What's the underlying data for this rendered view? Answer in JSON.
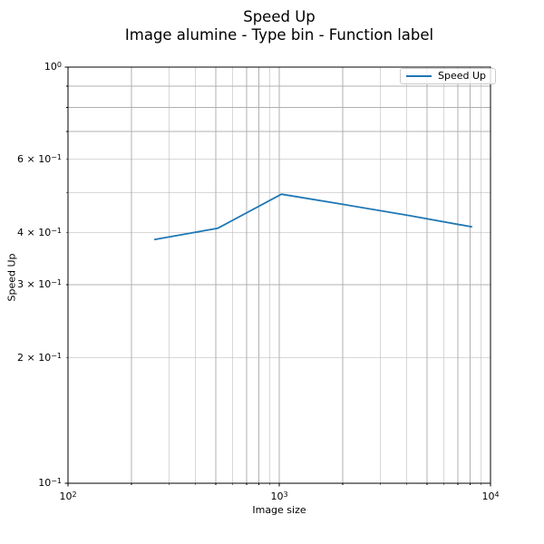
{
  "title": {
    "line1": "Speed Up",
    "line2": "Image alumine - Type bin - Function label"
  },
  "colors": {
    "line": "#1f77b4",
    "grid": "#b0b0b0",
    "spine": "#000000",
    "tick": "#000000",
    "text": "#000000",
    "legend_border": "#cccccc",
    "background": "#ffffff"
  },
  "chart_data": {
    "type": "line",
    "title": "Speed Up\nImage alumine - Type bin - Function label",
    "xlabel": "Image size",
    "ylabel": "Speed Up",
    "xscale": "log",
    "yscale": "log",
    "xlim": [
      100,
      10000
    ],
    "ylim": [
      0.1,
      1.0
    ],
    "grid": "both-major-and-minor",
    "legend_position": "upper right",
    "series": [
      {
        "name": "Speed Up",
        "color": "#1f77b4",
        "x": [
          256,
          512,
          1024,
          2048,
          4096,
          8192
        ],
        "y": [
          0.385,
          0.41,
          0.495,
          0.467,
          0.44,
          0.413
        ]
      }
    ],
    "x_ticks": [
      {
        "value": 100,
        "base": "10",
        "exp": "2"
      },
      {
        "value": 1000,
        "base": "10",
        "exp": "3"
      },
      {
        "value": 10000,
        "base": "10",
        "exp": "4"
      }
    ],
    "y_ticks": [
      {
        "value": 1.0,
        "prefix": "",
        "base": "10",
        "exp": "0"
      },
      {
        "value": 0.6,
        "prefix": "6 × ",
        "base": "10",
        "exp": "−1"
      },
      {
        "value": 0.4,
        "prefix": "4 × ",
        "base": "10",
        "exp": "−1"
      },
      {
        "value": 0.3,
        "prefix": "3 × ",
        "base": "10",
        "exp": "−1"
      },
      {
        "value": 0.2,
        "prefix": "2 × ",
        "base": "10",
        "exp": "−1"
      },
      {
        "value": 0.1,
        "prefix": "",
        "base": "10",
        "exp": "−1"
      }
    ]
  }
}
